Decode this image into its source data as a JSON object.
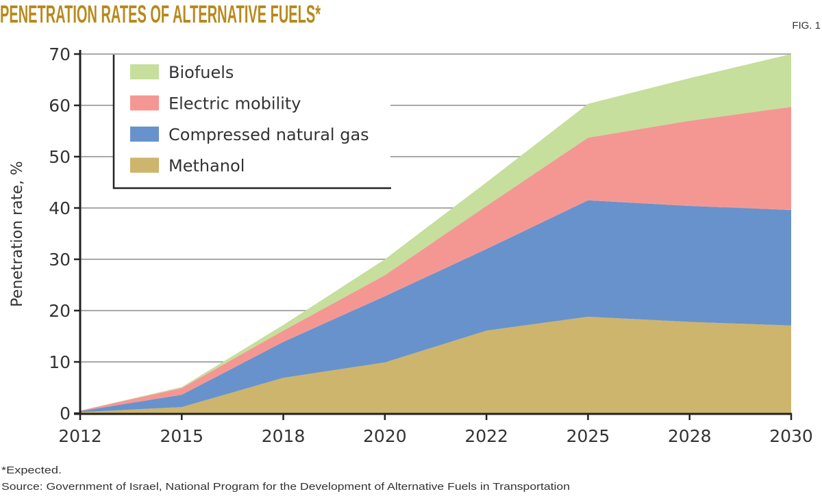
{
  "chart_data": {
    "type": "area",
    "stacked": true,
    "title": "PENETRATION RATES OF ALTERNATIVE FUELS*",
    "figure_label": "FIG. 1",
    "xlabel": "",
    "ylabel": "Penetration rate, %",
    "categories": [
      "2012",
      "2015",
      "2018",
      "2020",
      "2022",
      "2025",
      "2028",
      "2030"
    ],
    "ylim": [
      0,
      70
    ],
    "yticks": [
      "0",
      "10",
      "20",
      "30",
      "40",
      "50",
      "60",
      "70"
    ],
    "grid": true,
    "legend_position": "top-left",
    "series": [
      {
        "name": "Methanol",
        "color": "#cdb56d",
        "values": [
          0.2,
          1.2,
          6.9,
          9.9,
          16.1,
          18.8,
          17.8,
          17.1
        ]
      },
      {
        "name": "Compressed natural gas",
        "color": "#6892cb",
        "values": [
          0.2,
          2.4,
          7.0,
          12.9,
          15.9,
          22.7,
          22.6,
          22.5
        ]
      },
      {
        "name": "Electric mobility",
        "color": "#f49793",
        "values": [
          0.1,
          1.3,
          2.2,
          4.1,
          8.4,
          12.2,
          16.6,
          20.1
        ]
      },
      {
        "name": "Biofuels",
        "color": "#c6df9c",
        "values": [
          0.0,
          0.2,
          1.1,
          3.1,
          4.6,
          6.6,
          8.3,
          10.3
        ]
      }
    ],
    "legend_order": [
      3,
      2,
      1,
      0
    ],
    "footnotes": [
      "*Expected.",
      "Source: Government of Israel, National Program for the Development of Alternative Fuels in Transportation"
    ]
  }
}
